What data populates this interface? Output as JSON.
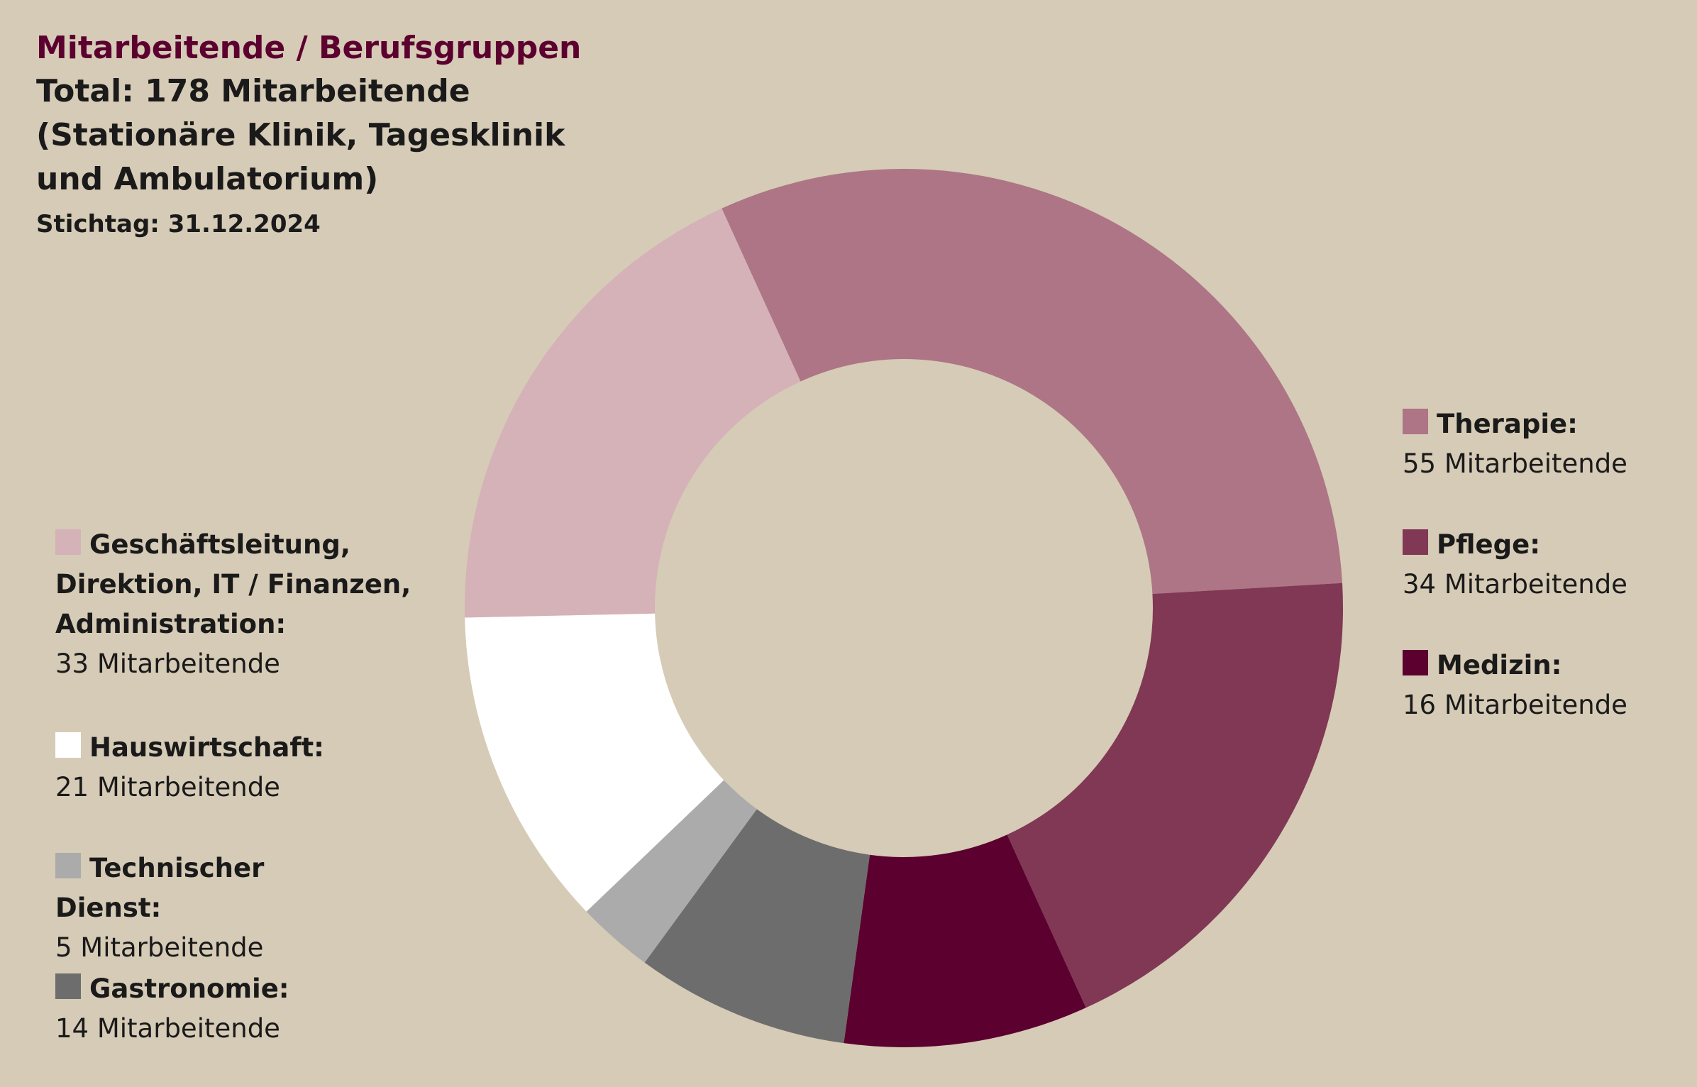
{
  "chart_data": {
    "type": "donut",
    "title": "Mitarbeitende / Berufsgruppen",
    "subtitle": "Total: 178 Mitarbeitende (Stationäre Klinik, Tagesklinik und Ambulatorium)",
    "note": "Stichtag: 31.12.2024",
    "categories": [
      "Therapie:",
      "Pflege:",
      "Medizin:",
      "Gastronomie:",
      "Technischer Dienst:",
      "Hauswirtschaft:",
      "Geschäftsleitung, Direktion, IT / Finanzen, Administration:"
    ],
    "values": [
      55,
      34,
      16,
      14,
      5,
      21,
      33
    ],
    "value_labels": [
      "55 Mitarbeitende",
      "34 Mitarbeitende",
      "16 Mitarbeitende",
      "14 Mitarbeitende",
      "5 Mitarbeitende",
      "21 Mitarbeitende",
      "33 Mitarbeitende"
    ],
    "colors": [
      "#ad7585",
      "#803855",
      "#5c0030",
      "#6d6d6d",
      "#ababab",
      "#ffffff",
      "#d5b1b8"
    ]
  }
}
